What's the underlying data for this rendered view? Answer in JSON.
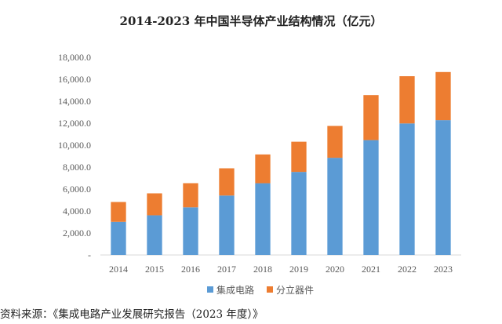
{
  "chart_data": {
    "type": "bar",
    "stacked": true,
    "title": "2014-2023 年中国半导体产业结构情况（亿元）",
    "categories": [
      "2014",
      "2015",
      "2016",
      "2017",
      "2018",
      "2019",
      "2020",
      "2021",
      "2022",
      "2023"
    ],
    "series": [
      {
        "name": "集成电路",
        "color": "#5B9BD5",
        "values": [
          3015,
          3610,
          4336,
          5411,
          6532,
          7562,
          8848,
          10458,
          11977,
          12277
        ]
      },
      {
        "name": "分立器件",
        "color": "#ED7D31",
        "values": [
          1810,
          2000,
          2200,
          2480,
          2620,
          2750,
          2900,
          4100,
          4300,
          4380
        ]
      }
    ],
    "ylim": [
      0,
      18000
    ],
    "y_ticks": [
      "-",
      "2,000.0",
      "4,000.0",
      "6,000.0",
      "8,000.0",
      "10,000.0",
      "12,000.0",
      "14,000.0",
      "16,000.0",
      "18,000.0"
    ],
    "grid": false,
    "legend_position": "bottom"
  },
  "source_note": "资料来源：《集成电路产业发展研究报告（2023 年度）》"
}
